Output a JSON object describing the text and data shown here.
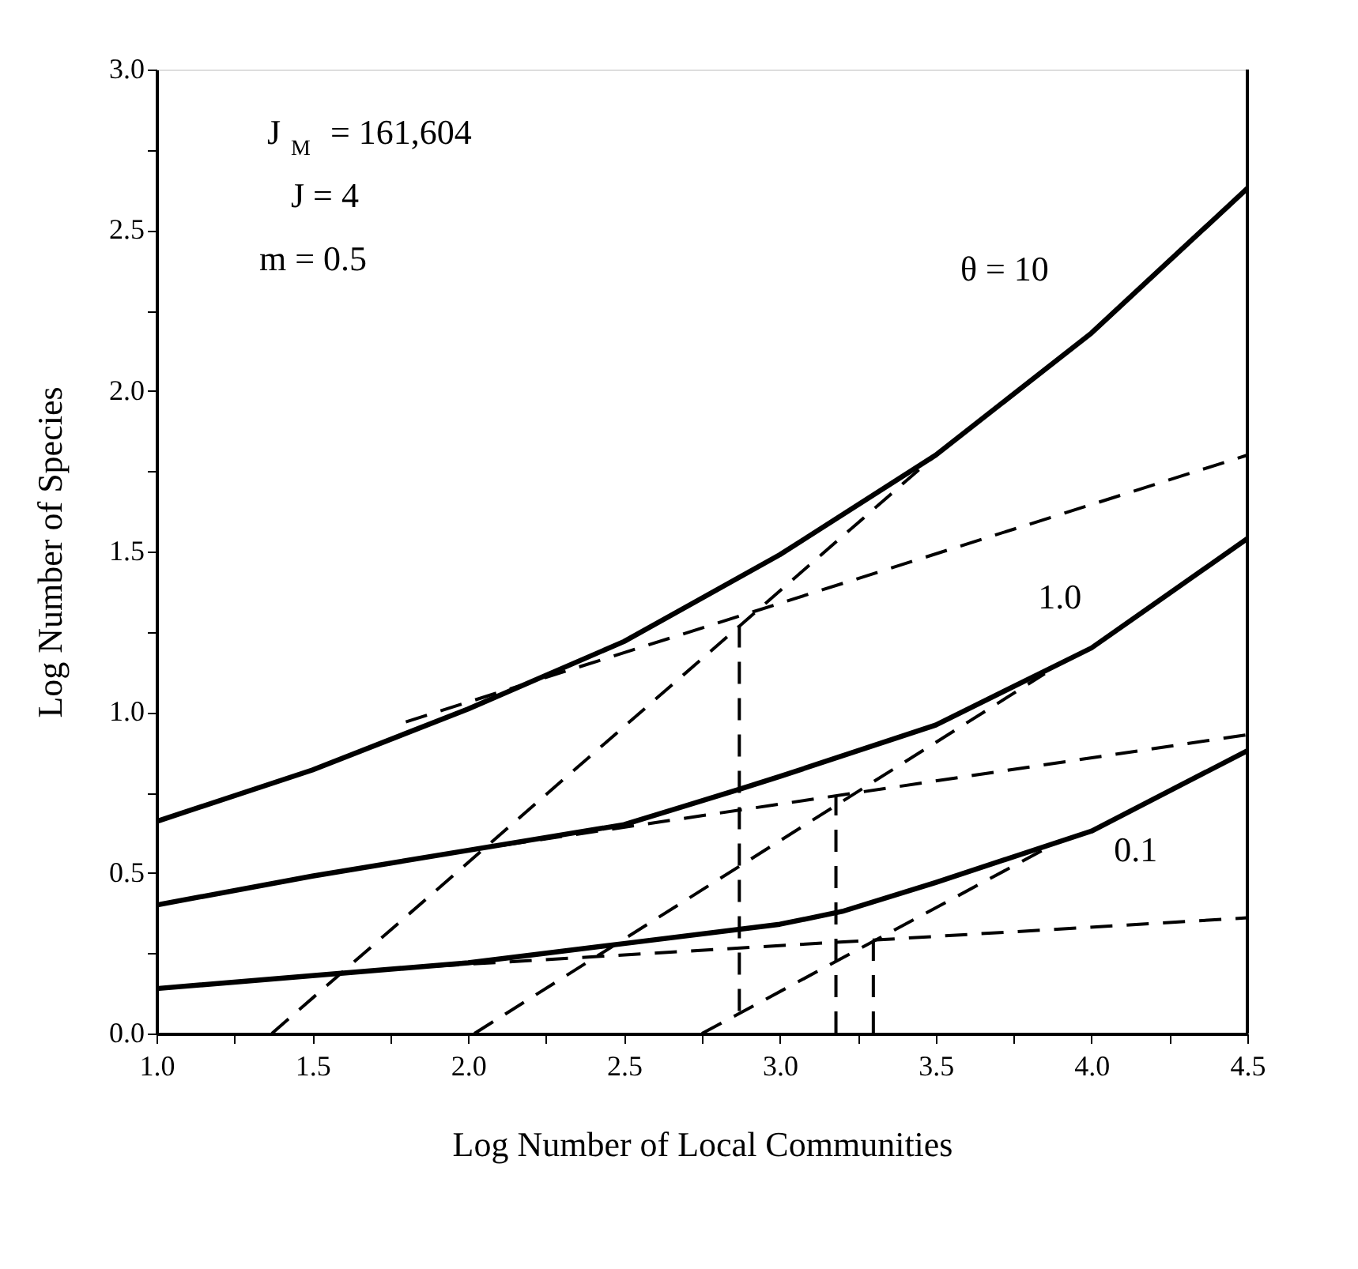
{
  "chart_data": {
    "type": "line",
    "xlabel": "Log Number of Local Communities",
    "ylabel": "Log Number of Species",
    "xlim": [
      1.0,
      4.5
    ],
    "ylim": [
      0.0,
      3.0
    ],
    "xticks": [
      {
        "value": 1.0,
        "label": "1.0"
      },
      {
        "value": 1.25,
        "label": null
      },
      {
        "value": 1.5,
        "label": "1.5"
      },
      {
        "value": 1.75,
        "label": null
      },
      {
        "value": 2.0,
        "label": "2.0"
      },
      {
        "value": 2.25,
        "label": null
      },
      {
        "value": 2.5,
        "label": "2.5"
      },
      {
        "value": 2.75,
        "label": null
      },
      {
        "value": 3.0,
        "label": "3.0"
      },
      {
        "value": 3.25,
        "label": null
      },
      {
        "value": 3.5,
        "label": "3.5"
      },
      {
        "value": 3.75,
        "label": null
      },
      {
        "value": 4.0,
        "label": "4.0"
      },
      {
        "value": 4.25,
        "label": null
      },
      {
        "value": 4.5,
        "label": "4.5"
      }
    ],
    "yticks": [
      {
        "value": 0.0,
        "label": "0.0"
      },
      {
        "value": 0.25,
        "label": null
      },
      {
        "value": 0.5,
        "label": "0.5"
      },
      {
        "value": 0.75,
        "label": null
      },
      {
        "value": 1.0,
        "label": "1.0"
      },
      {
        "value": 1.25,
        "label": null
      },
      {
        "value": 1.5,
        "label": "1.5"
      },
      {
        "value": 1.75,
        "label": null
      },
      {
        "value": 2.0,
        "label": "2.0"
      },
      {
        "value": 2.25,
        "label": null
      },
      {
        "value": 2.5,
        "label": "2.5"
      },
      {
        "value": 2.75,
        "label": null
      },
      {
        "value": 3.0,
        "label": "3.0"
      }
    ],
    "grid": false,
    "marker": "none",
    "annotations": [
      "J$_{M}$ = 161,604",
      "J = 4",
      "m = 0.5"
    ],
    "series": [
      {
        "name": "θ = 10",
        "color": "#000000",
        "line_style": "solid",
        "x": [
          1.0,
          1.5,
          2.0,
          2.5,
          3.0,
          3.5,
          4.0,
          4.5
        ],
        "values": [
          0.66,
          0.82,
          1.01,
          1.22,
          1.49,
          1.8,
          2.18,
          2.63
        ]
      },
      {
        "name": "1.0",
        "color": "#000000",
        "line_style": "solid",
        "x": [
          1.0,
          1.5,
          2.0,
          2.5,
          2.87,
          3.0,
          3.5,
          4.0,
          4.5
        ],
        "values": [
          0.4,
          0.49,
          0.57,
          0.65,
          0.76,
          0.8,
          0.96,
          1.2,
          1.54
        ]
      },
      {
        "name": "0.1",
        "color": "#000000",
        "line_style": "solid",
        "x": [
          1.0,
          1.5,
          2.0,
          2.5,
          3.0,
          3.2,
          3.5,
          4.0,
          4.5
        ],
        "values": [
          0.14,
          0.18,
          0.22,
          0.28,
          0.34,
          0.38,
          0.47,
          0.63,
          0.88
        ]
      },
      {
        "color": "#000000",
        "line_style": "dashed",
        "x": [
          1.8,
          4.5
        ],
        "values": [
          0.97,
          1.8
        ]
      },
      {
        "color": "#000000",
        "line_style": "dashed",
        "x": [
          1.37,
          3.5
        ],
        "values": [
          0.0,
          1.8
        ]
      },
      {
        "color": "#000000",
        "line_style": "dashed",
        "x": [
          2.87,
          2.87
        ],
        "values": [
          0.07,
          1.27
        ]
      },
      {
        "color": "#000000",
        "line_style": "dashed",
        "x": [
          2.0,
          4.5
        ],
        "values": [
          0.57,
          0.93
        ]
      },
      {
        "color": "#000000",
        "line_style": "dashed",
        "x": [
          2.02,
          3.85
        ],
        "values": [
          0.0,
          1.12
        ]
      },
      {
        "color": "#000000",
        "line_style": "dashed",
        "x": [
          3.18,
          3.18
        ],
        "values": [
          0.0,
          0.74
        ]
      },
      {
        "color": "#000000",
        "line_style": "dashed",
        "x": [
          1.9,
          4.5
        ],
        "values": [
          0.21,
          0.36
        ]
      },
      {
        "color": "#000000",
        "line_style": "dashed",
        "x": [
          2.75,
          3.9
        ],
        "values": [
          0.0,
          0.6
        ]
      },
      {
        "color": "#000000",
        "line_style": "dashed",
        "x": [
          3.3,
          3.3
        ],
        "values": [
          0.0,
          0.29
        ]
      }
    ]
  }
}
